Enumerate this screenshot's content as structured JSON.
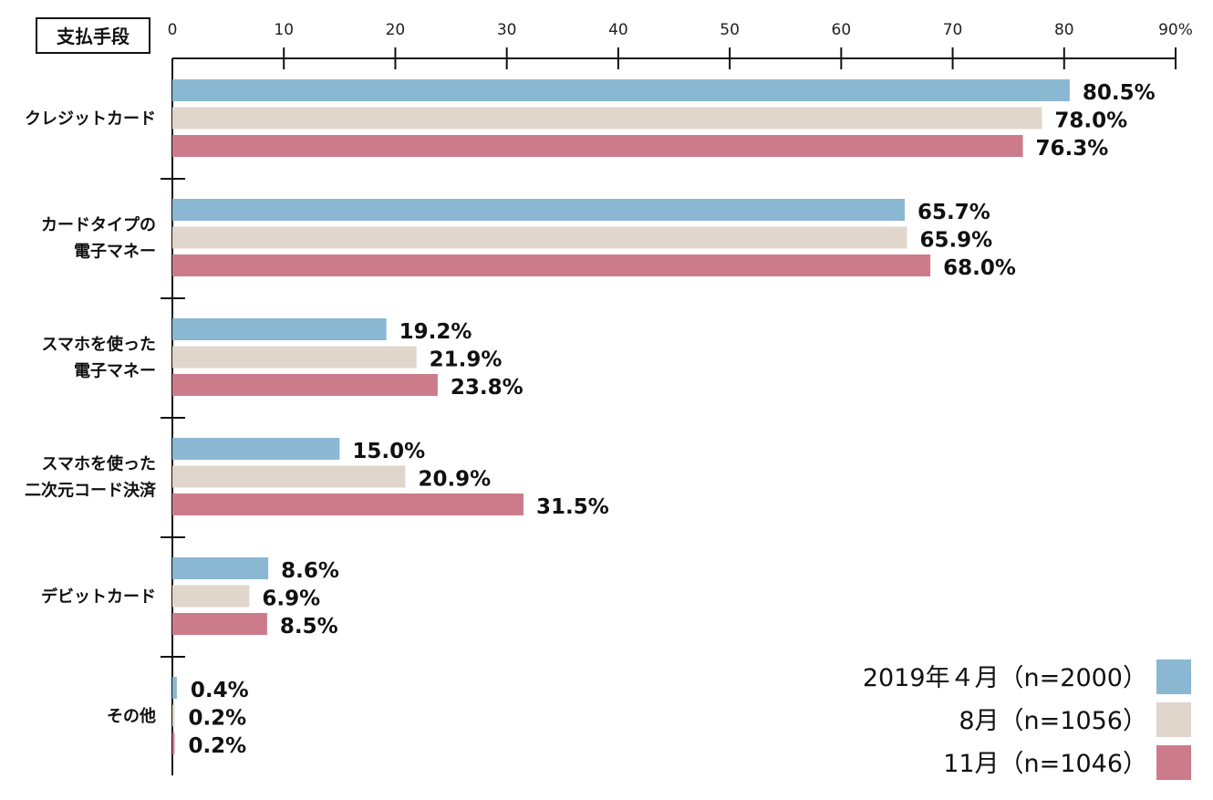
{
  "chart_data": {
    "type": "bar",
    "orientation": "horizontal",
    "title": "支払手段",
    "categories": [
      [
        "クレジットカード"
      ],
      [
        "カードタイプの",
        "電子マネー"
      ],
      [
        "スマホを使った",
        "電子マネー"
      ],
      [
        "スマホを使った",
        "二次元コード決済"
      ],
      [
        "デビットカード"
      ],
      [
        "その他"
      ]
    ],
    "series": [
      {
        "name": "2019年４月（n=2000）",
        "color": "#8ab7d2",
        "values": [
          80.5,
          65.7,
          19.2,
          15.0,
          8.6,
          0.4
        ],
        "labels": [
          "80.5%",
          "65.7%",
          "19.2%",
          "15.0%",
          "8.6%",
          "0.4%"
        ]
      },
      {
        "name": "8月（n=1056）",
        "color": "#e0d6cb",
        "values": [
          78.0,
          65.9,
          21.9,
          20.9,
          6.9,
          0.2
        ],
        "labels": [
          "78.0%",
          "65.9%",
          "21.9%",
          "20.9%",
          "6.9%",
          "0.2%"
        ]
      },
      {
        "name": "11月（n=1046）",
        "color": "#cc7b8b",
        "values": [
          76.3,
          68.0,
          23.8,
          31.5,
          8.5,
          0.2
        ],
        "labels": [
          "76.3%",
          "68.0%",
          "23.8%",
          "31.5%",
          "8.5%",
          "0.2%"
        ]
      }
    ],
    "xlim": [
      0,
      90
    ],
    "ticks": [
      0,
      10,
      20,
      30,
      40,
      50,
      60,
      70,
      80,
      90
    ],
    "tick_labels": [
      "0",
      "10",
      "20",
      "30",
      "40",
      "50",
      "60",
      "70",
      "80",
      "90%"
    ],
    "legend_position": "bottom-right",
    "grid": false
  }
}
